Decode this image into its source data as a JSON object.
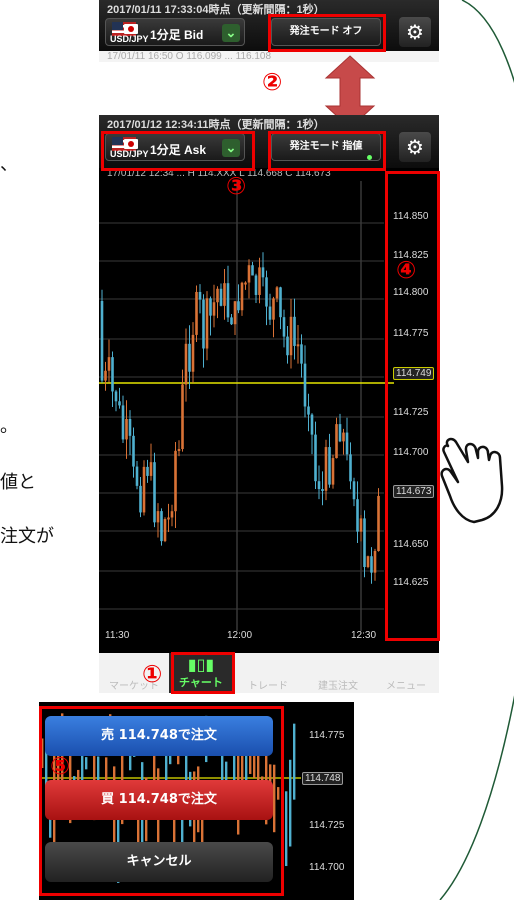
{
  "side_text": {
    "line1": "、",
    "line2": "。",
    "line3": "値と",
    "line4": "注文が"
  },
  "screen1": {
    "timestamp": "2017/01/11  17:33:04時点（更新間隔：1秒）",
    "pair_code": "USD/JPY",
    "timeframe": "1分足  Bid",
    "mode": "発注モード オフ",
    "ticker": "17/01/11 16:50  O 116.099  ...  116.108"
  },
  "screen2": {
    "timestamp": "2017/01/12  12:34:11時点（更新間隔：1秒）",
    "pair_code": "USD/JPY",
    "timeframe": "1分足  Ask",
    "mode": "発注モード 指値",
    "ticker": "17/01/12 12:34  ...  H 114.XXX  L 114.668  C 114.673",
    "y_labels": [
      "114.850",
      "114.825",
      "114.800",
      "114.775",
      "114.749",
      "114.725",
      "114.700",
      "114.673",
      "114.650",
      "114.625"
    ],
    "x_labels": [
      "11:30",
      "12:00",
      "12:30"
    ],
    "tabs": [
      "マーケット",
      "チャート",
      "トレード",
      "建玉注文",
      "メニュー"
    ]
  },
  "badges": {
    "b1": "①",
    "b2": "②",
    "b3": "③",
    "b4": "④",
    "b5": "⑤"
  },
  "order_panel": {
    "sell": "売 114.748で注文",
    "buy": "買 114.748で注文",
    "cancel": "キャンセル",
    "y_labels": [
      "114.775",
      "114.748",
      "114.725",
      "114.700"
    ]
  },
  "colors": {
    "up_candle": "#d97236",
    "down_candle": "#4fb0cf",
    "price_line": "#e6e600",
    "highlight": "#e00000",
    "sell_button": "#1f5fc8",
    "buy_button": "#c81a1a"
  }
}
